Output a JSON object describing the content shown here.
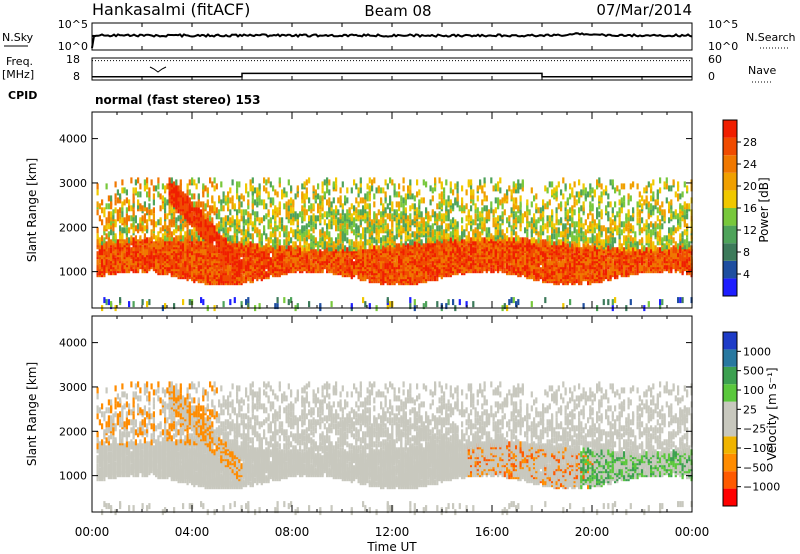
{
  "header": {
    "station": "Hankasalmi (fitACF)",
    "beam": "Beam 08",
    "date": "07/Mar/2014"
  },
  "colors": {
    "power_scale": [
      "#1e1eff",
      "#1e4ea0",
      "#3c7a5a",
      "#4ea35a",
      "#78c83c",
      "#f0c800",
      "#f0a000",
      "#f07800",
      "#f04b00",
      "#f01e00"
    ],
    "velocity_scale": [
      "#ff0000",
      "#ff5a00",
      "#ff8c00",
      "#f0b400",
      "#c8c8be",
      "#c8c8be",
      "#5ac83c",
      "#3ca050",
      "#2878a0",
      "#1e3cc8"
    ],
    "noise_trace": "#000000"
  },
  "chart_data": [
    {
      "type": "line",
      "panel": "noise",
      "left_label": "N.Sky",
      "right_label": "N.Search",
      "left_ticks": [
        "10^5",
        "10^0"
      ],
      "right_ticks": [
        "10^5",
        "10^0"
      ],
      "x_range": [
        0,
        24
      ]
    },
    {
      "type": "line",
      "panel": "frequency",
      "left_label": "Freq.",
      "left_unit": "[MHz]",
      "left_ticks": [
        "18",
        "8"
      ],
      "right_label": "Nave",
      "right_ticks": [
        "60",
        "0"
      ],
      "nave_value": 53,
      "freq_steps": [
        {
          "from": 0,
          "to": 6,
          "freq": 9.5
        },
        {
          "from": 6,
          "to": 18,
          "freq": 11
        },
        {
          "from": 18,
          "to": 24,
          "freq": 9.5
        }
      ],
      "x_range": [
        0,
        24
      ]
    },
    {
      "type": "heatmap",
      "panel": "power",
      "cpid_label": "CPID",
      "cpid_text": "normal (fast stereo) 153",
      "ylabel": "Slant Range [km]",
      "ylim": [
        180,
        4600
      ],
      "yticks": [
        1000,
        2000,
        3000,
        4000
      ],
      "colorbar_label": "Power [dB]",
      "colorbar_ticks": [
        "4",
        "8",
        "12",
        "16",
        "20",
        "24",
        "28"
      ],
      "clim": [
        0,
        32
      ],
      "x_range": [
        0,
        24
      ]
    },
    {
      "type": "heatmap",
      "panel": "velocity",
      "ylabel": "Slant Range [km]",
      "ylim": [
        180,
        4600
      ],
      "yticks": [
        1000,
        2000,
        3000,
        4000
      ],
      "colorbar_label": "Velocity [m s⁻¹]",
      "colorbar_ticks": [
        "−1000",
        "−500",
        "−100",
        "−25",
        "25",
        "100",
        "500",
        "1000"
      ],
      "xlabel": "Time UT",
      "xticks": [
        "00:00",
        "04:00",
        "08:00",
        "12:00",
        "16:00",
        "20:00",
        "00:00"
      ],
      "x_range": [
        0,
        24
      ]
    }
  ]
}
